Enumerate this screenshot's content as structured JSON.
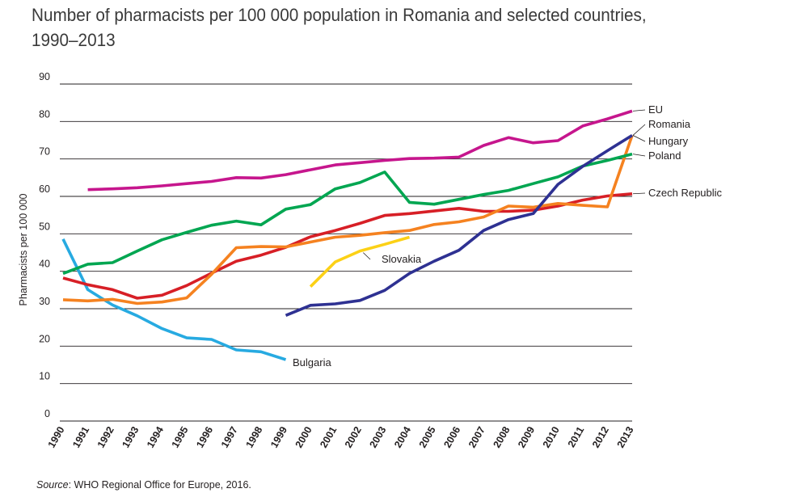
{
  "chart_data": {
    "type": "line",
    "title_line1": "Number of pharmacists per 100 000 population in Romania and selected countries,",
    "title_line2": "1990–2013",
    "ylabel": "Pharmacists per 100 000",
    "xlabel": "",
    "ylim": [
      0,
      90
    ],
    "yticks": [
      0,
      10,
      20,
      30,
      40,
      50,
      60,
      70,
      80,
      90
    ],
    "x": [
      "1990",
      "1991",
      "1992",
      "1993",
      "1994",
      "1995",
      "1996",
      "1997",
      "1998",
      "1999",
      "2000",
      "2001",
      "2002",
      "2003",
      "2004",
      "2005",
      "2006",
      "2007",
      "2008",
      "2009",
      "2010",
      "2011",
      "2012",
      "2013"
    ],
    "grid": true,
    "source_label": "Source",
    "source_text": ": WHO Regional Office for Europe, 2016.",
    "series": [
      {
        "name": "EU",
        "label": "EU",
        "color": "#c6168d",
        "values": [
          null,
          61.8,
          62.0,
          62.3,
          62.8,
          63.4,
          64.0,
          65.0,
          64.9,
          65.8,
          67.1,
          68.4,
          69.0,
          69.6,
          70.1,
          70.2,
          70.5,
          73.6,
          75.7,
          74.3,
          74.9,
          78.8,
          80.7,
          82.8
        ]
      },
      {
        "name": "Romania",
        "label": "Romania",
        "color": "#2e3192",
        "values": [
          null,
          null,
          null,
          null,
          null,
          null,
          null,
          null,
          null,
          28.2,
          30.9,
          31.3,
          32.2,
          34.9,
          39.4,
          42.7,
          45.6,
          50.9,
          53.8,
          55.4,
          63.2,
          68.0,
          72.2,
          76.3
        ]
      },
      {
        "name": "Hungary",
        "label": "Hungary",
        "color": "#f58220",
        "values": [
          32.4,
          32.1,
          32.5,
          31.4,
          31.8,
          32.9,
          39.2,
          46.3,
          46.6,
          46.5,
          47.8,
          49.1,
          49.6,
          50.3,
          50.9,
          52.5,
          53.2,
          54.5,
          57.4,
          57.1,
          58.1,
          57.6,
          57.2,
          76.3
        ]
      },
      {
        "name": "Poland",
        "label": "Poland",
        "color": "#00a651",
        "values": [
          39.4,
          41.9,
          42.3,
          45.4,
          48.4,
          50.4,
          52.3,
          53.4,
          52.4,
          56.6,
          57.8,
          62.0,
          63.7,
          66.5,
          58.4,
          57.9,
          59.2,
          60.5,
          61.6,
          63.4,
          65.2,
          68.1,
          69.6,
          71.3
        ]
      },
      {
        "name": "Czech Republic",
        "label": "Czech Republic",
        "color": "#d71f26",
        "values": [
          38.2,
          36.4,
          35.1,
          32.8,
          33.6,
          36.2,
          39.5,
          42.7,
          44.3,
          46.4,
          49.2,
          50.9,
          52.8,
          54.9,
          55.4,
          56.1,
          56.8,
          56.0,
          56.0,
          56.3,
          57.4,
          59.0,
          60.1,
          60.7
        ]
      },
      {
        "name": "Slovakia",
        "label": "Slovakia",
        "color": "#fcd116",
        "values": [
          null,
          null,
          null,
          null,
          null,
          null,
          null,
          null,
          null,
          null,
          35.9,
          42.5,
          45.4,
          47.2,
          49.1,
          null,
          null,
          null,
          null,
          null,
          null,
          null,
          null,
          null
        ]
      },
      {
        "name": "Bulgaria",
        "label": "Bulgaria",
        "color": "#27aae1",
        "values": [
          48.6,
          35.1,
          31.0,
          28.1,
          24.7,
          22.2,
          21.8,
          19.0,
          18.5,
          16.4,
          null,
          null,
          null,
          null,
          null,
          null,
          null,
          null,
          null,
          null,
          null,
          null,
          null,
          null
        ]
      }
    ]
  }
}
